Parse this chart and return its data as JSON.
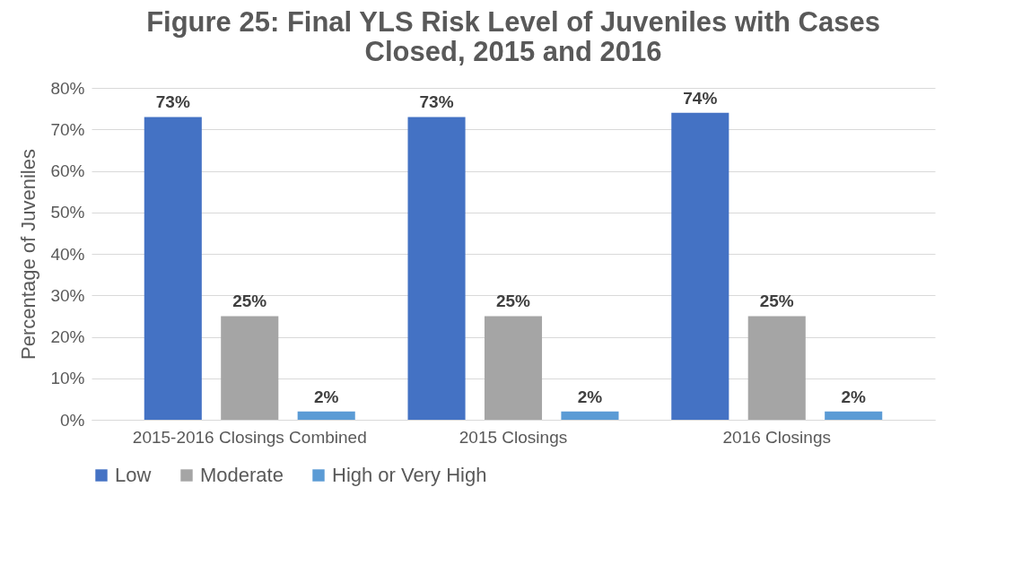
{
  "chart_data": {
    "type": "bar",
    "title": "Figure 25: Final YLS Risk Level of Juveniles with Cases Closed, 2015 and 2016",
    "ylabel": "Percentage of Juveniles",
    "categories": [
      "2015-2016 Closings Combined",
      "2015 Closings",
      "2016 Closings"
    ],
    "series": [
      {
        "name": "Low",
        "color": "#4472c4",
        "values": [
          73,
          73,
          74
        ],
        "value_labels": [
          "73%",
          "73%",
          "74%"
        ]
      },
      {
        "name": "Moderate",
        "color": "#a5a5a5",
        "values": [
          25,
          25,
          25
        ],
        "value_labels": [
          "25%",
          "25%",
          "25%"
        ]
      },
      {
        "name": "High or Very High",
        "color": "#5b9bd5",
        "values": [
          2,
          2,
          2
        ],
        "value_labels": [
          "2%",
          "2%",
          "2%"
        ]
      }
    ],
    "ylim": [
      0,
      80
    ],
    "yticks": [
      {
        "value": 0,
        "label": "0%"
      },
      {
        "value": 10,
        "label": "10%"
      },
      {
        "value": 20,
        "label": "20%"
      },
      {
        "value": 30,
        "label": "30%"
      },
      {
        "value": 40,
        "label": "40%"
      },
      {
        "value": 50,
        "label": "50%"
      },
      {
        "value": 60,
        "label": "60%"
      },
      {
        "value": 70,
        "label": "70%"
      },
      {
        "value": 80,
        "label": "80%"
      }
    ],
    "grid": "y",
    "legend": "bottom"
  }
}
